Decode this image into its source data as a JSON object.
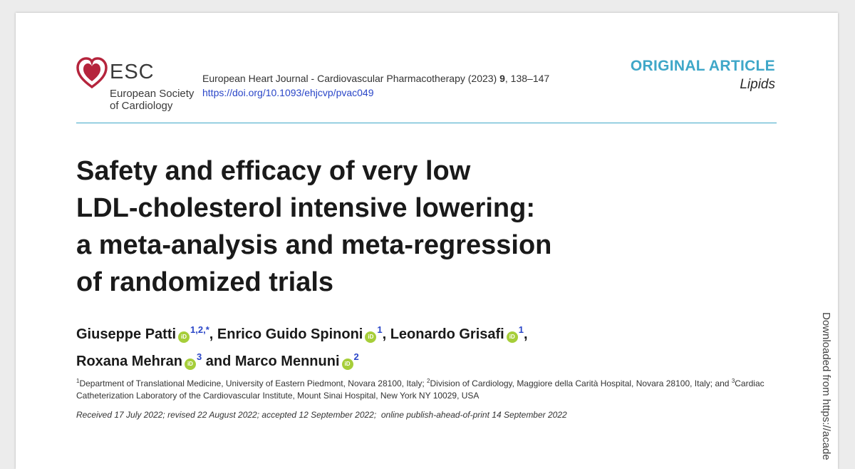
{
  "header": {
    "logo_text": "ESC",
    "logo_subtext": "European Society\nof Cardiology",
    "journal": "European Heart Journal - Cardiovascular Pharmacotherapy (2023)",
    "volume": "9",
    "pages": ", 138–147",
    "doi": "https://doi.org/10.1093/ehjcvp/pvac049",
    "article_type": "ORIGINAL ARTICLE",
    "topic": "Lipids"
  },
  "title": "Safety and efficacy of very low\nLDL-cholesterol intensive lowering:\na meta-analysis and meta-regression\nof randomized trials",
  "authors": [
    {
      "name": "Giuseppe Patti",
      "sup": "1,2,*",
      "sep": ", "
    },
    {
      "name": "Enrico Guido Spinoni",
      "sup": "1",
      "sep": ", "
    },
    {
      "name": "Leonardo Grisafi",
      "sup": "1",
      "sep": ","
    },
    {
      "name": "Roxana Mehran",
      "sup": "3",
      "sep": " and "
    },
    {
      "name": "Marco Mennuni",
      "sup": "2",
      "sep": ""
    }
  ],
  "orcid_label": "iD",
  "affiliations": [
    {
      "sup": "1",
      "text": "Department of Translational Medicine, University of Eastern Piedmont, Novara 28100, Italy; "
    },
    {
      "sup": "2",
      "text": "Division of Cardiology, Maggiore della Carità Hospital, Novara 28100, Italy; and "
    },
    {
      "sup": "3",
      "text": "Cardiac Catheterization Laboratory of the Cardiovascular Institute, Mount Sinai Hospital, New York NY 10029, USA"
    }
  ],
  "dates": "Received 17 July 2022; revised 22 August 2022; accepted 12 September 2022;  online publish-ahead-of-print 14 September 2022",
  "watermark": "Downloaded from https://acade",
  "colors": {
    "accent": "#3fa7c8",
    "link": "#2a46c8",
    "logo_red": "#b5243c",
    "orcid": "#a6ce39"
  }
}
